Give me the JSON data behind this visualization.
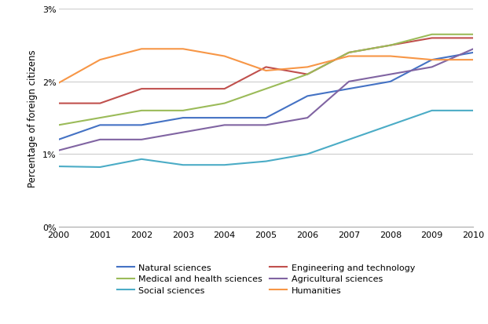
{
  "years": [
    2000,
    2001,
    2002,
    2003,
    2004,
    2005,
    2006,
    2007,
    2008,
    2009,
    2010
  ],
  "series": {
    "Natural sciences": {
      "values": [
        0.012,
        0.014,
        0.014,
        0.015,
        0.015,
        0.015,
        0.018,
        0.019,
        0.02,
        0.023,
        0.024
      ],
      "color": "#4472C4"
    },
    "Engineering and technology": {
      "values": [
        0.017,
        0.017,
        0.019,
        0.019,
        0.019,
        0.022,
        0.021,
        0.024,
        0.025,
        0.026,
        0.026
      ],
      "color": "#C0504D"
    },
    "Medical and health sciences": {
      "values": [
        0.014,
        0.015,
        0.016,
        0.016,
        0.017,
        0.019,
        0.021,
        0.024,
        0.025,
        0.0265,
        0.0265
      ],
      "color": "#9BBB59"
    },
    "Agricultural sciences": {
      "values": [
        0.0105,
        0.012,
        0.012,
        0.013,
        0.014,
        0.014,
        0.015,
        0.02,
        0.021,
        0.022,
        0.0245
      ],
      "color": "#8064A2"
    },
    "Social sciences": {
      "values": [
        0.0083,
        0.0082,
        0.0093,
        0.0085,
        0.0085,
        0.009,
        0.01,
        0.012,
        0.014,
        0.016,
        0.016
      ],
      "color": "#4BACC6"
    },
    "Humanities": {
      "values": [
        0.0198,
        0.023,
        0.0245,
        0.0245,
        0.0235,
        0.0215,
        0.022,
        0.0235,
        0.0235,
        0.023,
        0.023
      ],
      "color": "#F79646"
    }
  },
  "ylabel": "Percentage of foreign citizens",
  "ylim": [
    0,
    0.03
  ],
  "yticks": [
    0,
    0.01,
    0.02,
    0.03
  ],
  "ytick_labels": [
    "0%",
    "1%",
    "2%",
    "3%"
  ],
  "background_color": "#FFFFFF",
  "legend_order": [
    "Natural sciences",
    "Engineering and technology",
    "Medical and health sciences",
    "Agricultural sciences",
    "Social sciences",
    "Humanities"
  ]
}
